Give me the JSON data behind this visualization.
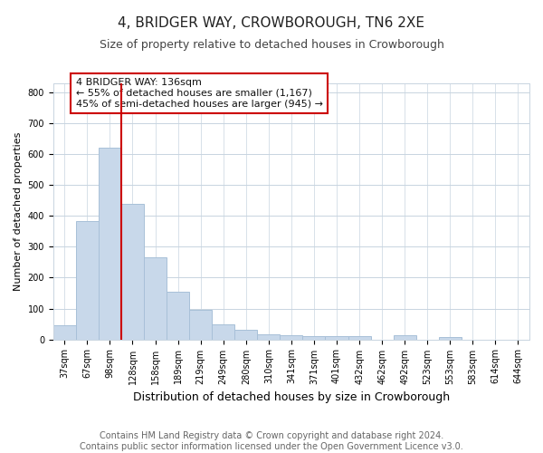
{
  "title": "4, BRIDGER WAY, CROWBOROUGH, TN6 2XE",
  "subtitle": "Size of property relative to detached houses in Crowborough",
  "xlabel": "Distribution of detached houses by size in Crowborough",
  "ylabel": "Number of detached properties",
  "categories": [
    "37sqm",
    "67sqm",
    "98sqm",
    "128sqm",
    "158sqm",
    "189sqm",
    "219sqm",
    "249sqm",
    "280sqm",
    "310sqm",
    "341sqm",
    "371sqm",
    "401sqm",
    "432sqm",
    "462sqm",
    "492sqm",
    "523sqm",
    "553sqm",
    "583sqm",
    "614sqm",
    "644sqm"
  ],
  "values": [
    47,
    383,
    622,
    440,
    267,
    155,
    95,
    50,
    30,
    17,
    13,
    10,
    10,
    10,
    0,
    13,
    0,
    8,
    0,
    0,
    0
  ],
  "bar_color": "#c8d8ea",
  "bar_edge_color": "#a8c0d8",
  "marker_bar_index": 3,
  "marker_color": "#cc0000",
  "annotation_text": "4 BRIDGER WAY: 136sqm\n← 55% of detached houses are smaller (1,167)\n45% of semi-detached houses are larger (945) →",
  "annotation_box_color": "#ffffff",
  "annotation_box_edge_color": "#cc0000",
  "ylim": [
    0,
    830
  ],
  "yticks": [
    0,
    100,
    200,
    300,
    400,
    500,
    600,
    700,
    800
  ],
  "background_color": "#ffffff",
  "grid_color": "#c8d4e0",
  "footer_text": "Contains HM Land Registry data © Crown copyright and database right 2024.\nContains public sector information licensed under the Open Government Licence v3.0.",
  "title_fontsize": 11,
  "subtitle_fontsize": 9,
  "xlabel_fontsize": 9,
  "ylabel_fontsize": 8,
  "tick_fontsize": 7,
  "footer_fontsize": 7,
  "annotation_fontsize": 8
}
